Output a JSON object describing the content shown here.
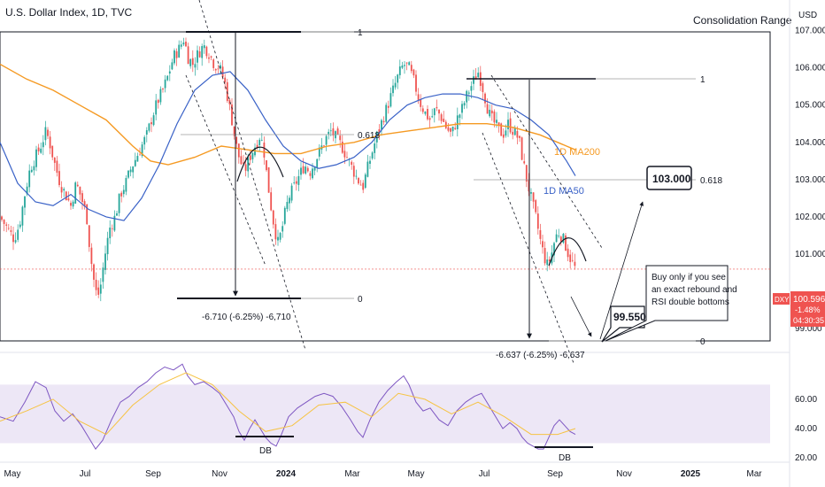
{
  "header": {
    "symbol_line": "U.S. Dollar Index, 1D, TVC",
    "currency": "USD"
  },
  "chart_data": {
    "type": "candlestick",
    "price_ylim": [
      99.0,
      107.3
    ],
    "price_ticks": [
      "107.000",
      "106.000",
      "105.000",
      "104.000",
      "103.000",
      "102.000",
      "101.000",
      "99.000"
    ],
    "price_tick_values": [
      107,
      106,
      105,
      104,
      103,
      102,
      101,
      99
    ],
    "rsi_ylim": [
      17,
      92
    ],
    "rsi_ticks": [
      "60.00",
      "40.00",
      "20.00"
    ],
    "rsi_tick_values": [
      60,
      40,
      20
    ],
    "x_ticks": [
      "May",
      "Jul",
      "Sep",
      "Nov",
      "2024",
      "Mar",
      "May",
      "Jul",
      "Sep",
      "Nov",
      "2025",
      "Mar"
    ],
    "x_tick_pos": [
      14,
      96,
      173,
      248,
      323,
      398,
      470,
      547,
      627,
      705,
      780,
      852
    ],
    "close_path": [
      [
        0,
        102.0
      ],
      [
        8,
        101.7
      ],
      [
        16,
        101.4
      ],
      [
        22,
        101.8
      ],
      [
        28,
        102.6
      ],
      [
        34,
        103.3
      ],
      [
        40,
        103.6
      ],
      [
        46,
        103.9
      ],
      [
        52,
        104.3
      ],
      [
        56,
        104.0
      ],
      [
        62,
        103.4
      ],
      [
        68,
        102.9
      ],
      [
        74,
        102.6
      ],
      [
        80,
        102.3
      ],
      [
        86,
        102.9
      ],
      [
        92,
        102.5
      ],
      [
        98,
        102.0
      ],
      [
        102,
        101.0
      ],
      [
        106,
        100.3
      ],
      [
        110,
        99.8
      ],
      [
        114,
        100.2
      ],
      [
        118,
        100.9
      ],
      [
        124,
        101.7
      ],
      [
        130,
        102.0
      ],
      [
        136,
        102.6
      ],
      [
        142,
        102.9
      ],
      [
        148,
        103.3
      ],
      [
        154,
        103.6
      ],
      [
        160,
        103.9
      ],
      [
        166,
        104.2
      ],
      [
        172,
        104.7
      ],
      [
        178,
        105.1
      ],
      [
        184,
        105.4
      ],
      [
        190,
        105.8
      ],
      [
        196,
        106.3
      ],
      [
        202,
        106.5
      ],
      [
        208,
        106.8
      ],
      [
        212,
        106.3
      ],
      [
        218,
        106.1
      ],
      [
        224,
        106.4
      ],
      [
        230,
        106.6
      ],
      [
        236,
        106.4
      ],
      [
        242,
        106.1
      ],
      [
        248,
        106.0
      ],
      [
        254,
        105.6
      ],
      [
        258,
        105.1
      ],
      [
        262,
        104.6
      ],
      [
        266,
        104.0
      ],
      [
        270,
        103.6
      ],
      [
        276,
        103.2
      ],
      [
        282,
        103.6
      ],
      [
        288,
        103.9
      ],
      [
        294,
        104.2
      ],
      [
        298,
        103.8
      ],
      [
        302,
        103.0
      ],
      [
        306,
        102.3
      ],
      [
        310,
        101.7
      ],
      [
        314,
        101.3
      ],
      [
        318,
        101.6
      ],
      [
        322,
        102.1
      ],
      [
        326,
        102.5
      ],
      [
        332,
        102.8
      ],
      [
        338,
        103.1
      ],
      [
        344,
        103.4
      ],
      [
        350,
        103.2
      ],
      [
        356,
        103.5
      ],
      [
        362,
        103.8
      ],
      [
        368,
        104.1
      ],
      [
        374,
        104.3
      ],
      [
        380,
        104.1
      ],
      [
        386,
        103.9
      ],
      [
        392,
        103.6
      ],
      [
        398,
        103.3
      ],
      [
        404,
        103.0
      ],
      [
        410,
        102.8
      ],
      [
        414,
        103.2
      ],
      [
        420,
        103.7
      ],
      [
        426,
        104.2
      ],
      [
        432,
        104.6
      ],
      [
        438,
        105.0
      ],
      [
        444,
        105.4
      ],
      [
        450,
        105.8
      ],
      [
        456,
        106.1
      ],
      [
        462,
        106.0
      ],
      [
        468,
        105.6
      ],
      [
        474,
        105.1
      ],
      [
        480,
        104.8
      ],
      [
        486,
        104.6
      ],
      [
        492,
        104.9
      ],
      [
        498,
        104.7
      ],
      [
        504,
        104.4
      ],
      [
        510,
        104.2
      ],
      [
        516,
        104.6
      ],
      [
        522,
        104.9
      ],
      [
        528,
        105.3
      ],
      [
        534,
        105.6
      ],
      [
        540,
        105.9
      ],
      [
        544,
        105.6
      ],
      [
        548,
        105.2
      ],
      [
        552,
        104.8
      ],
      [
        556,
        104.6
      ],
      [
        562,
        104.4
      ],
      [
        568,
        104.2
      ],
      [
        574,
        104.5
      ],
      [
        580,
        104.3
      ],
      [
        586,
        104.1
      ],
      [
        590,
        103.6
      ],
      [
        594,
        103.1
      ],
      [
        598,
        102.7
      ],
      [
        602,
        102.3
      ],
      [
        606,
        101.9
      ],
      [
        610,
        101.4
      ],
      [
        614,
        101.0
      ],
      [
        618,
        100.7
      ],
      [
        622,
        100.9
      ],
      [
        626,
        101.3
      ],
      [
        630,
        101.6
      ],
      [
        634,
        101.5
      ],
      [
        638,
        101.3
      ],
      [
        642,
        101.0
      ],
      [
        646,
        100.8
      ],
      [
        650,
        100.6
      ]
    ],
    "ma50_path": [
      [
        0,
        104.0
      ],
      [
        20,
        102.9
      ],
      [
        40,
        102.4
      ],
      [
        60,
        102.3
      ],
      [
        80,
        102.6
      ],
      [
        100,
        102.2
      ],
      [
        120,
        102.0
      ],
      [
        140,
        101.9
      ],
      [
        160,
        102.5
      ],
      [
        180,
        103.4
      ],
      [
        200,
        104.5
      ],
      [
        220,
        105.4
      ],
      [
        240,
        105.8
      ],
      [
        260,
        105.9
      ],
      [
        280,
        105.4
      ],
      [
        300,
        104.6
      ],
      [
        320,
        103.9
      ],
      [
        340,
        103.5
      ],
      [
        360,
        103.3
      ],
      [
        380,
        103.4
      ],
      [
        400,
        103.6
      ],
      [
        420,
        104.0
      ],
      [
        440,
        104.6
      ],
      [
        460,
        105.0
      ],
      [
        480,
        105.2
      ],
      [
        500,
        105.3
      ],
      [
        520,
        105.3
      ],
      [
        540,
        105.2
      ],
      [
        560,
        105.0
      ],
      [
        580,
        104.9
      ],
      [
        600,
        104.6
      ],
      [
        620,
        104.2
      ],
      [
        640,
        103.5
      ],
      [
        650,
        103.1
      ]
    ],
    "ma200_path": [
      [
        0,
        106.1
      ],
      [
        30,
        105.7
      ],
      [
        60,
        105.4
      ],
      [
        90,
        105.0
      ],
      [
        120,
        104.6
      ],
      [
        150,
        103.9
      ],
      [
        170,
        103.5
      ],
      [
        190,
        103.4
      ],
      [
        220,
        103.6
      ],
      [
        250,
        103.9
      ],
      [
        280,
        103.8
      ],
      [
        310,
        103.7
      ],
      [
        340,
        103.7
      ],
      [
        370,
        103.9
      ],
      [
        400,
        104.0
      ],
      [
        430,
        104.2
      ],
      [
        460,
        104.3
      ],
      [
        490,
        104.4
      ],
      [
        520,
        104.5
      ],
      [
        550,
        104.5
      ],
      [
        580,
        104.4
      ],
      [
        610,
        104.2
      ],
      [
        640,
        103.9
      ],
      [
        650,
        103.8
      ]
    ],
    "rsi_path": [
      [
        0,
        48
      ],
      [
        15,
        45
      ],
      [
        28,
        58
      ],
      [
        40,
        72
      ],
      [
        52,
        68
      ],
      [
        62,
        52
      ],
      [
        72,
        45
      ],
      [
        82,
        50
      ],
      [
        92,
        42
      ],
      [
        100,
        34
      ],
      [
        108,
        26
      ],
      [
        116,
        32
      ],
      [
        126,
        46
      ],
      [
        136,
        58
      ],
      [
        146,
        62
      ],
      [
        156,
        68
      ],
      [
        166,
        72
      ],
      [
        176,
        78
      ],
      [
        186,
        82
      ],
      [
        196,
        80
      ],
      [
        206,
        84
      ],
      [
        212,
        76
      ],
      [
        220,
        70
      ],
      [
        230,
        72
      ],
      [
        240,
        68
      ],
      [
        248,
        64
      ],
      [
        256,
        56
      ],
      [
        264,
        48
      ],
      [
        270,
        38
      ],
      [
        276,
        32
      ],
      [
        282,
        40
      ],
      [
        288,
        46
      ],
      [
        294,
        40
      ],
      [
        300,
        34
      ],
      [
        306,
        30
      ],
      [
        312,
        28
      ],
      [
        318,
        36
      ],
      [
        326,
        48
      ],
      [
        336,
        54
      ],
      [
        346,
        58
      ],
      [
        356,
        62
      ],
      [
        366,
        64
      ],
      [
        376,
        62
      ],
      [
        386,
        55
      ],
      [
        396,
        46
      ],
      [
        404,
        38
      ],
      [
        410,
        34
      ],
      [
        418,
        46
      ],
      [
        428,
        58
      ],
      [
        438,
        66
      ],
      [
        448,
        72
      ],
      [
        456,
        76
      ],
      [
        462,
        70
      ],
      [
        470,
        58
      ],
      [
        478,
        52
      ],
      [
        486,
        54
      ],
      [
        496,
        46
      ],
      [
        506,
        42
      ],
      [
        516,
        52
      ],
      [
        526,
        58
      ],
      [
        536,
        62
      ],
      [
        544,
        64
      ],
      [
        552,
        56
      ],
      [
        560,
        48
      ],
      [
        568,
        40
      ],
      [
        576,
        44
      ],
      [
        584,
        40
      ],
      [
        590,
        34
      ],
      [
        596,
        30
      ],
      [
        602,
        28
      ],
      [
        608,
        26
      ],
      [
        614,
        26
      ],
      [
        620,
        34
      ],
      [
        626,
        42
      ],
      [
        632,
        46
      ],
      [
        638,
        42
      ],
      [
        644,
        38
      ],
      [
        650,
        36
      ]
    ],
    "rsi_ma_path": [
      [
        0,
        45
      ],
      [
        30,
        52
      ],
      [
        60,
        60
      ],
      [
        90,
        45
      ],
      [
        120,
        36
      ],
      [
        150,
        56
      ],
      [
        180,
        70
      ],
      [
        210,
        78
      ],
      [
        240,
        70
      ],
      [
        270,
        52
      ],
      [
        300,
        38
      ],
      [
        330,
        42
      ],
      [
        360,
        56
      ],
      [
        390,
        58
      ],
      [
        420,
        48
      ],
      [
        450,
        64
      ],
      [
        480,
        60
      ],
      [
        510,
        50
      ],
      [
        540,
        58
      ],
      [
        570,
        48
      ],
      [
        600,
        36
      ],
      [
        630,
        36
      ],
      [
        650,
        40
      ]
    ],
    "last_price": "100.596",
    "last_change": "-1.48%",
    "countdown": "04:30:35",
    "ticker_badge": "DXY",
    "series_labels": {
      "ma200": "1D MA200",
      "ma50": "1D MA50"
    },
    "colors": {
      "up": "#26a69a",
      "down": "#ef5350",
      "ma50": "#3a62c7",
      "ma200": "#f59a23",
      "rsi": "#7e57c2",
      "rsi_ma": "#f6c343",
      "rsi_band": "#ede7f6"
    }
  },
  "annotations": {
    "range_title": "Consolidation Range",
    "fib_left": {
      "one": "1",
      "mid": "0.618",
      "zero": "0",
      "measure": "-6.710 (-6.25%) -6,710"
    },
    "fib_right": {
      "one": "1",
      "mid": "0.618",
      "zero": "0",
      "measure": "-6.637 (-6.25%) -6,637"
    },
    "target_high": "103.000",
    "target_low": "99.550",
    "note_lines": [
      "Buy only if you see",
      "an exact rebound and",
      "RSI double bottoms"
    ],
    "db_left": "DB",
    "db_right": "DB"
  }
}
